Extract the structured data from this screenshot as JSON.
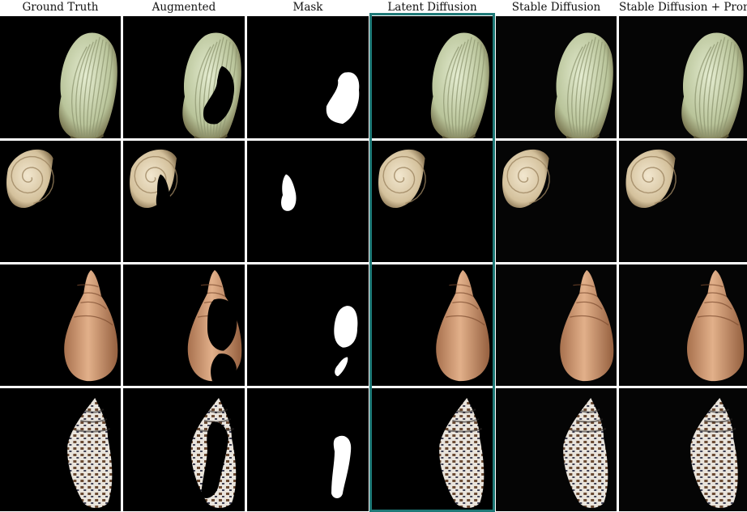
{
  "columns": [
    {
      "id": "ground-truth",
      "label": "Ground Truth"
    },
    {
      "id": "augmented",
      "label": "Augmented"
    },
    {
      "id": "mask",
      "label": "Mask"
    },
    {
      "id": "latent-diffusion",
      "label": "Latent Diffusion"
    },
    {
      "id": "stable-diffusion",
      "label": "Stable Diffusion"
    },
    {
      "id": "stable-diffusion-prompt",
      "label": "Stable Diffusion + Prompt"
    }
  ],
  "rows": [
    {
      "id": "scallop-shell",
      "subject": "scallop shell"
    },
    {
      "id": "spiral-shell",
      "subject": "spiral snail shell"
    },
    {
      "id": "conical-shell",
      "subject": "tall brown snail shell"
    },
    {
      "id": "spotted-shell",
      "subject": "spotted cone shell"
    }
  ],
  "highlighted_column": "latent-diffusion",
  "colors": {
    "background": "#000000",
    "grid": "#ffffff",
    "highlight": "#1f7a78",
    "mask": "#ffffff"
  }
}
